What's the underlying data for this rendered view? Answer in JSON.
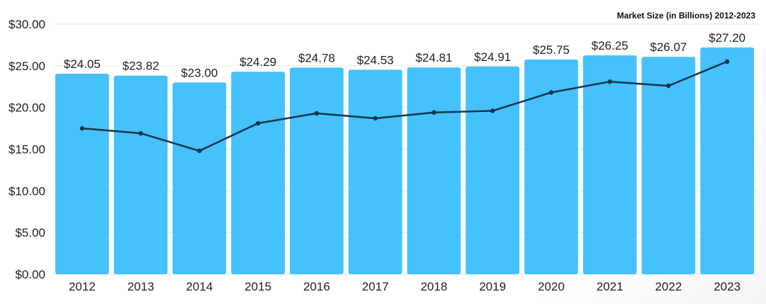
{
  "chart_data": {
    "type": "bar",
    "title": "Market Size (in Billions) 2012-2023",
    "xlabel": "",
    "ylabel": "",
    "categories": [
      "2012",
      "2013",
      "2014",
      "2015",
      "2016",
      "2017",
      "2018",
      "2019",
      "2020",
      "2021",
      "2022",
      "2023"
    ],
    "series": [
      {
        "type": "bar",
        "values": [
          24.05,
          23.82,
          23.0,
          24.29,
          24.78,
          24.53,
          24.81,
          24.91,
          25.75,
          26.25,
          26.07,
          27.2
        ],
        "data_labels": [
          "$24.05",
          "$23.82",
          "$23.00",
          "$24.29",
          "$24.78",
          "$24.53",
          "$24.81",
          "$24.91",
          "$25.75",
          "$26.25",
          "$26.07",
          "$27.20"
        ],
        "color": "#45c1fb"
      },
      {
        "type": "line",
        "values": [
          17.5,
          16.9,
          14.8,
          18.1,
          19.3,
          18.7,
          19.4,
          19.6,
          21.8,
          23.1,
          22.6,
          25.5
        ],
        "color": "#14344f"
      }
    ],
    "ylim": [
      0,
      30
    ],
    "yticks": [
      {
        "value": 0,
        "label": "$0.00"
      },
      {
        "value": 5,
        "label": "$5.00"
      },
      {
        "value": 10,
        "label": "$10.00"
      },
      {
        "value": 15,
        "label": "$15.00"
      },
      {
        "value": 20,
        "label": "$20.00"
      },
      {
        "value": 25,
        "label": "$25.00"
      },
      {
        "value": 30,
        "label": "$30.00"
      }
    ],
    "grid": true,
    "legend": "none"
  }
}
